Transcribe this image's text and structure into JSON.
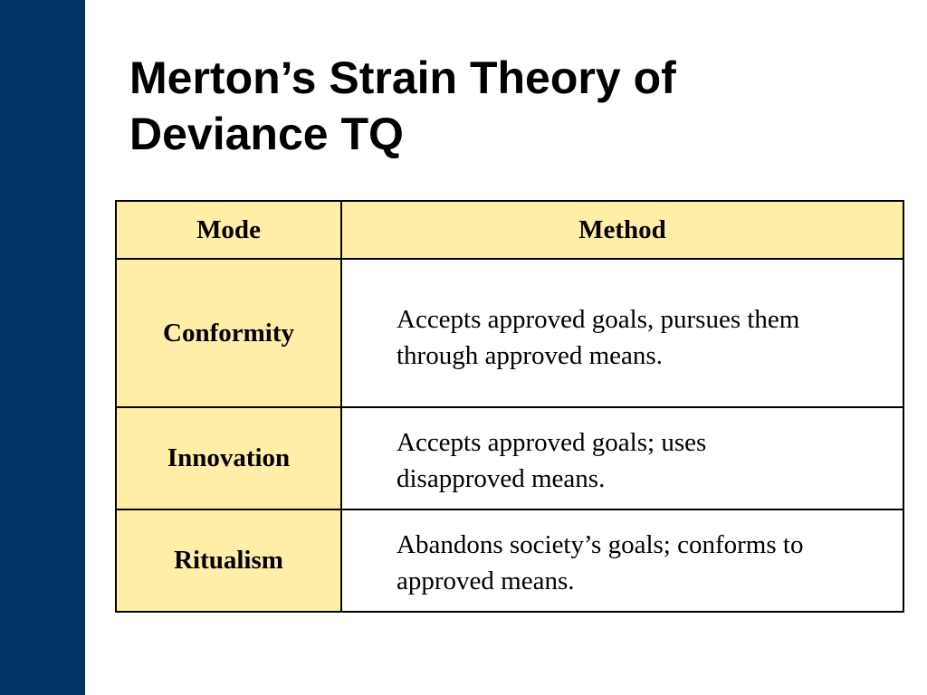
{
  "header": {
    "title_lines": [
      "Merton’s Strain Theory of",
      "Deviance TQ"
    ]
  },
  "table": {
    "columns": [
      "Mode",
      "Method"
    ],
    "rows": [
      [
        "Conformity",
        [
          "Accepts approved goals, pursues them",
          "through approved means."
        ]
      ],
      [
        "Innovation",
        [
          "Accepts approved goals; uses",
          "disapproved means."
        ]
      ],
      [
        "Ritualism",
        [
          "Abandons society’s goals; conforms to",
          "approved means."
        ]
      ]
    ]
  }
}
